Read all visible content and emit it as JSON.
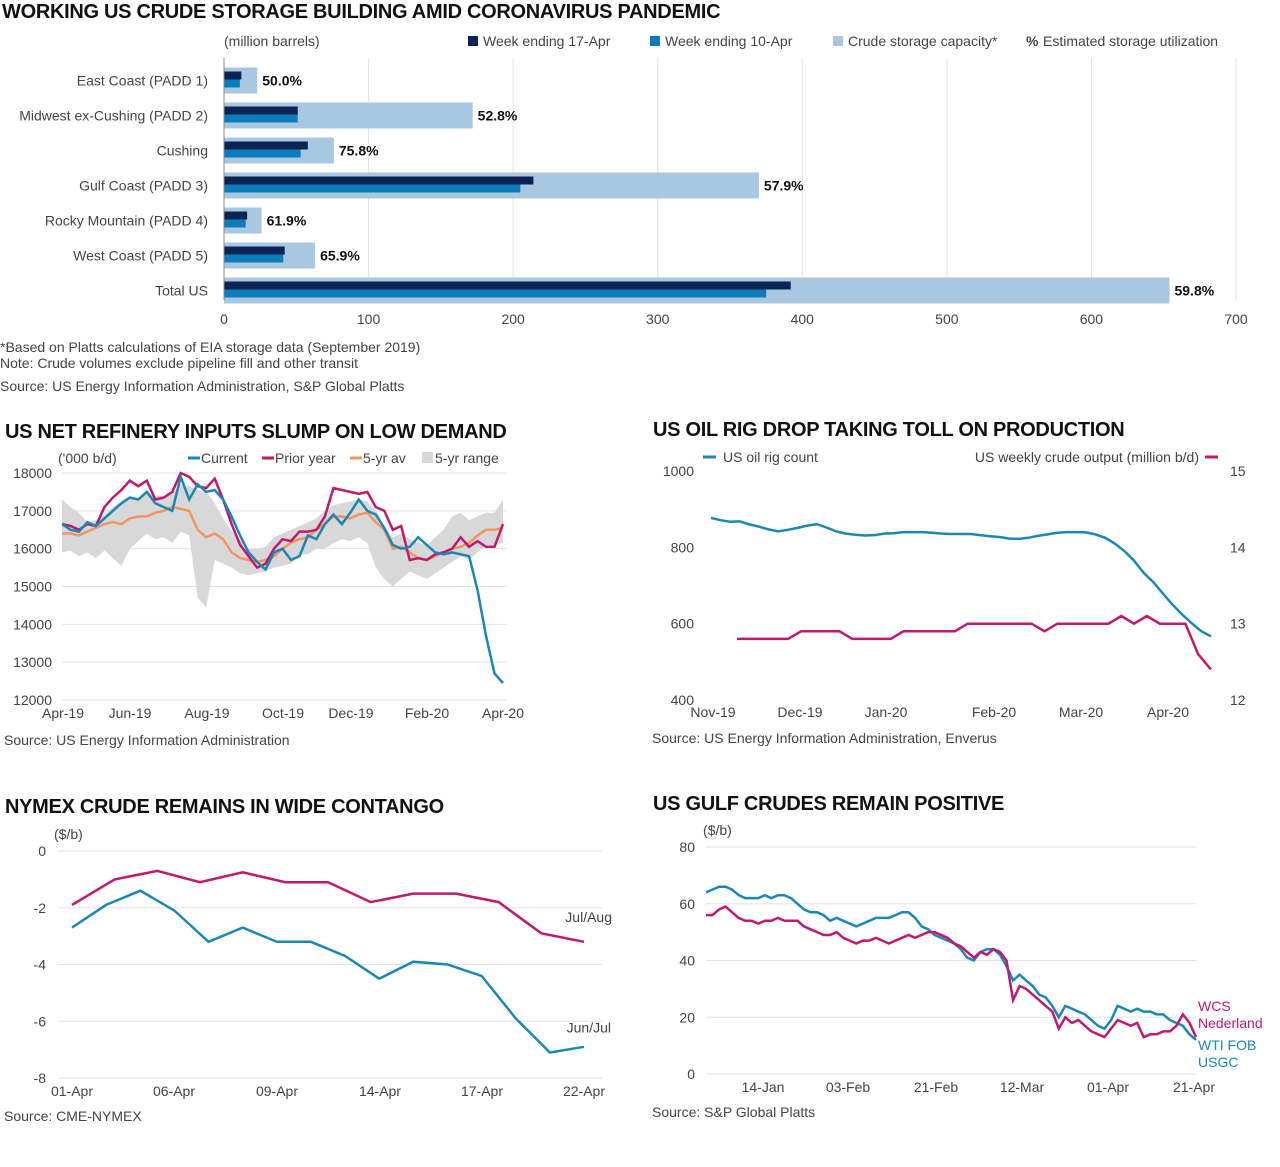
{
  "colors": {
    "navy": "#0c2354",
    "blue": "#0d7cba",
    "light_blue": "#a7c8e0",
    "teal": "#1a87b5",
    "magenta": "#c2186e",
    "orange": "#f0965e",
    "gray_band": "#d8d8d8"
  },
  "storage": {
    "title": "WORKING US CRUDE STORAGE BUILDING AMID CORONAVIRUS PANDEMIC",
    "notes": [
      "*Based on Platts calculations of EIA storage data (September 2019)",
      "Note: Crude volumes exclude pipeline fill and other transit",
      "Source: US Energy Information Administration, S&P Global Platts"
    ]
  },
  "refinery": {
    "title": "US NET REFINERY INPUTS SLUMP ON LOW DEMAND",
    "source": "Source: US Energy Information Administration"
  },
  "rigs": {
    "title": "US OIL RIG DROP TAKING TOLL ON PRODUCTION",
    "source": "Source: US Energy Information Administration, Enverus"
  },
  "nymex": {
    "title": "NYMEX CRUDE REMAINS IN WIDE CONTANGO",
    "source": "Source: CME-NYMEX"
  },
  "gulf": {
    "title": "US GULF CRUDES REMAIN POSITIVE",
    "source": "Source: S&P Global Platts"
  },
  "chart_data": [
    {
      "type": "bar",
      "unit_label": "(million barrels)",
      "categories": [
        "East Coast (PADD 1)",
        "Midwest ex-Cushing (PADD 2)",
        "Cushing",
        "Gulf Coast (PADD 3)",
        "Rocky Mountain (PADD 4)",
        "West Coast (PADD 5)",
        "Total US"
      ],
      "series": [
        {
          "name": "Week ending 17-Apr",
          "values": [
            12,
            51,
            58,
            214,
            16,
            42,
            392
          ]
        },
        {
          "name": "Week ending 10-Apr",
          "values": [
            11,
            51,
            53,
            205,
            15,
            41,
            375
          ]
        },
        {
          "name": "Crude storage capacity*",
          "values": [
            23,
            172,
            76,
            370,
            26,
            63,
            654
          ]
        }
      ],
      "utilization_legend": "Estimated storage utilization",
      "utilization_symbol": "%",
      "utilization": [
        "50.0%",
        "52.8%",
        "75.8%",
        "57.9%",
        "61.9%",
        "65.9%",
        "59.8%"
      ],
      "xlim": [
        0,
        700
      ],
      "xticks": [
        0,
        100,
        200,
        300,
        400,
        500,
        600,
        700
      ],
      "grid": true,
      "legend": "top"
    },
    {
      "type": "line",
      "unit_label": "('000 b/d)",
      "ylim": [
        12000,
        18000
      ],
      "yticks": [
        12000,
        13000,
        14000,
        15000,
        16000,
        17000,
        18000
      ],
      "xticks": [
        "Apr-19",
        "Jun-19",
        "Aug-19",
        "Oct-19",
        "Dec-19",
        "Feb-20",
        "Apr-20"
      ],
      "series": [
        {
          "name": "Current",
          "values": [
            16650,
            16500,
            16450,
            16700,
            16600,
            16800,
            17000,
            17200,
            17350,
            17300,
            17500,
            17200,
            17100,
            17000,
            17900,
            17300,
            17700,
            17500,
            17550,
            17300,
            16850,
            16350,
            15900,
            15650,
            15450,
            15900,
            16000,
            15700,
            15800,
            16350,
            16250,
            16650,
            16900,
            16650,
            16950,
            17300,
            17000,
            16900,
            16550,
            16100,
            16000,
            16050,
            16300,
            16100,
            15900,
            15850,
            15900,
            15850,
            15800,
            14900,
            13700,
            12700,
            12450
          ]
        },
        {
          "name": "Prior year",
          "values": [
            16650,
            16600,
            16500,
            16650,
            16600,
            17100,
            17350,
            17550,
            17800,
            17650,
            17800,
            17300,
            17350,
            17500,
            18000,
            17900,
            17650,
            17600,
            17850,
            17300,
            16650,
            16100,
            15800,
            15500,
            15600,
            16000,
            16250,
            16200,
            16450,
            16450,
            16500,
            16850,
            17600,
            17550,
            17500,
            17450,
            17500,
            17100,
            17000,
            16500,
            16600,
            15700,
            15750,
            15700,
            15850,
            15900,
            16000,
            16300,
            16050,
            16200,
            16050,
            16050,
            16650
          ]
        },
        {
          "name": "5-yr av",
          "values": [
            16400,
            16400,
            16350,
            16450,
            16550,
            16650,
            16700,
            16650,
            16800,
            16850,
            16850,
            16950,
            17000,
            17100,
            17050,
            17000,
            16500,
            16300,
            16400,
            16250,
            15900,
            15750,
            15700,
            15650,
            15700,
            15800,
            16000,
            16150,
            16250,
            16300,
            16500,
            16650,
            16850,
            16850,
            16800,
            16900,
            16950,
            16700,
            16500,
            16000,
            16050,
            15900,
            15750,
            15700,
            15800,
            15900,
            16000,
            16050,
            16150,
            16350,
            16500,
            16500,
            16550
          ]
        },
        {
          "name": "5-yr range",
          "min": [
            15900,
            15950,
            15800,
            15900,
            15750,
            15950,
            15750,
            15550,
            16000,
            16200,
            16400,
            16250,
            16300,
            16150,
            16450,
            16350,
            14700,
            14450,
            15700,
            15600,
            15500,
            15350,
            15300,
            15350,
            15400,
            15500,
            15550,
            15600,
            15850,
            15850,
            16000,
            16000,
            16150,
            16250,
            16200,
            16300,
            16150,
            15500,
            15200,
            15000,
            15200,
            15400,
            15300,
            15200,
            15350,
            15500,
            15650,
            15800,
            15700,
            15900,
            16100,
            16100,
            16150
          ],
          "max": [
            17300,
            17100,
            16950,
            16700,
            16750,
            16900,
            17100,
            17250,
            17350,
            17350,
            17500,
            17400,
            17400,
            17450,
            17700,
            17650,
            17550,
            17500,
            17200,
            16800,
            16450,
            16250,
            16000,
            16000,
            16050,
            16300,
            16400,
            16500,
            16600,
            16700,
            16800,
            17000,
            17150,
            17200,
            17250,
            17300,
            17250,
            17000,
            16600,
            16300,
            16400,
            16250,
            16150,
            16100,
            16300,
            16500,
            16850,
            16950,
            16750,
            16850,
            16950,
            16950,
            17300
          ]
        }
      ],
      "grid": true,
      "legend": "top"
    },
    {
      "type": "line",
      "xticks": [
        "Nov-19",
        "Dec-19",
        "Jan-20",
        "Feb-20",
        "Mar-20",
        "Apr-20"
      ],
      "y_left": {
        "ylim": [
          400,
          1000
        ],
        "yticks": [
          400,
          600,
          800,
          1000
        ]
      },
      "y_right": {
        "ylim": [
          12,
          15
        ],
        "yticks": [
          12,
          13,
          14,
          15
        ]
      },
      "series": [
        {
          "name": "US oil rig count",
          "axis": "left",
          "values": [
            877,
            871,
            867,
            868,
            860,
            854,
            847,
            842,
            846,
            851,
            857,
            861,
            852,
            842,
            836,
            833,
            831,
            832,
            836,
            837,
            840,
            840,
            840,
            838,
            836,
            835,
            835,
            835,
            832,
            829,
            827,
            823,
            822,
            825,
            830,
            834,
            838,
            840,
            840,
            839,
            834,
            825,
            810,
            790,
            765,
            733,
            709,
            679,
            650,
            624,
            601,
            580,
            567
          ]
        },
        {
          "name": "US weekly crude output (million b/d)",
          "axis": "right",
          "values": [
            12.8,
            12.8,
            12.8,
            12.8,
            12.8,
            12.9,
            12.9,
            12.9,
            12.9,
            12.8,
            12.8,
            12.8,
            12.8,
            12.9,
            12.9,
            12.9,
            12.9,
            12.9,
            13.0,
            13.0,
            13.0,
            13.0,
            13.0,
            13.0,
            12.9,
            13.0,
            13.0,
            13.0,
            13.0,
            13.0,
            13.1,
            13.0,
            13.1,
            13.0,
            13.0,
            13.0,
            12.6,
            12.4
          ]
        }
      ],
      "legend": "top"
    },
    {
      "type": "line",
      "unit_label": "($/b)",
      "ylim": [
        -8,
        0
      ],
      "yticks": [
        0,
        -2,
        -4,
        -6,
        -8
      ],
      "xticks": [
        "01-Apr",
        "06-Apr",
        "09-Apr",
        "14-Apr",
        "17-Apr",
        "22-Apr"
      ],
      "series": [
        {
          "name": "Jul/Aug",
          "values": [
            -1.9,
            -1.0,
            -0.7,
            -1.1,
            -0.75,
            -1.1,
            -1.1,
            -1.8,
            -1.5,
            -1.5,
            -1.8,
            -2.9,
            -3.2
          ]
        },
        {
          "name": "Jun/Jul",
          "values": [
            -2.7,
            -1.9,
            -1.4,
            -2.1,
            -3.2,
            -2.7,
            -3.2,
            -3.2,
            -3.7,
            -4.5,
            -3.9,
            -4.0,
            -4.4,
            -5.9,
            -7.1,
            -6.9
          ]
        }
      ],
      "grid": true,
      "legend": "inline"
    },
    {
      "type": "line",
      "unit_label": "($/b)",
      "ylim": [
        0,
        80
      ],
      "yticks": [
        0,
        20,
        40,
        60,
        80
      ],
      "xticks": [
        "14-Jan",
        "03-Feb",
        "21-Feb",
        "12-Mar",
        "01-Apr",
        "21-Apr"
      ],
      "series": [
        {
          "name": "WCS Nederland",
          "values": [
            56,
            56,
            58,
            59,
            57,
            55,
            54,
            54,
            53,
            54,
            54,
            55,
            54,
            54,
            54,
            52,
            51,
            50,
            49,
            49,
            50,
            48,
            47,
            46,
            47,
            47,
            48,
            47,
            46,
            47,
            48,
            49,
            48,
            49,
            50,
            50,
            49,
            48,
            46,
            45,
            43,
            41,
            43,
            42,
            44,
            43,
            40,
            26,
            31,
            30,
            28,
            26,
            24,
            22,
            16,
            20,
            18,
            19,
            17,
            15,
            14,
            13,
            16,
            19,
            18,
            17,
            18,
            13,
            14,
            14,
            15,
            15,
            17,
            21,
            18,
            13
          ]
        },
        {
          "name": "WTI FOB USGC",
          "values": [
            64,
            65,
            66,
            66,
            65,
            63,
            62,
            62,
            62,
            63,
            62,
            63,
            63,
            62,
            60,
            58,
            57,
            57,
            56,
            54,
            55,
            54,
            53,
            52,
            53,
            54,
            55,
            55,
            55,
            56,
            57,
            57,
            55,
            52,
            51,
            49,
            48,
            47,
            46,
            44,
            41,
            40,
            43,
            44,
            44,
            42,
            38,
            33,
            35,
            33,
            31,
            28,
            27,
            24,
            20,
            24,
            23,
            22,
            21,
            19,
            17,
            16,
            19,
            24,
            23,
            22,
            23,
            22,
            22,
            21,
            21,
            19,
            18,
            17,
            14,
            12
          ]
        }
      ],
      "grid": true,
      "legend": "inline"
    }
  ]
}
